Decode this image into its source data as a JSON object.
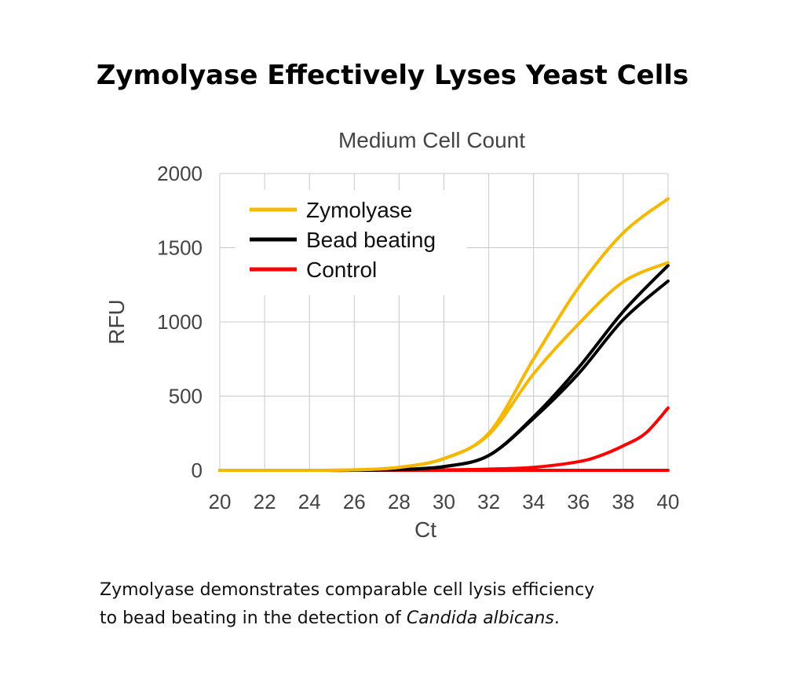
{
  "title": "Zymolyase Effectively Lyses Yeast Cells",
  "caption": {
    "line1": "Zymolyase demonstrates comparable cell lysis efficiency",
    "line2_prefix": "to bead beating in the detection of ",
    "line2_italic": "Candida albicans",
    "line2_suffix": "."
  },
  "chart_data": {
    "type": "line",
    "title": "Medium Cell Count",
    "xlabel": "Ct",
    "ylabel": "RFU",
    "xlim": [
      20,
      40
    ],
    "ylim": [
      0,
      2000
    ],
    "xticks": [
      "20",
      "22",
      "24",
      "26",
      "28",
      "30",
      "32",
      "34",
      "36",
      "38",
      "40"
    ],
    "yticks": [
      "0",
      "500",
      "1000",
      "1500",
      "2000"
    ],
    "grid": true,
    "legend_position": "top-left",
    "legend": [
      {
        "name": "Zymolyase",
        "color": "#f5b800"
      },
      {
        "name": "Bead beating",
        "color": "#000000"
      },
      {
        "name": "Control",
        "color": "#ff0000"
      }
    ],
    "series": [
      {
        "group": "Zymolyase",
        "color": "#f5b800",
        "x": [
          20,
          22,
          24,
          26,
          28,
          30,
          32,
          34,
          36,
          38,
          40
        ],
        "y": [
          0,
          0,
          0,
          3,
          20,
          80,
          250,
          750,
          1230,
          1600,
          1830
        ]
      },
      {
        "group": "Zymolyase",
        "color": "#f5b800",
        "x": [
          20,
          22,
          24,
          26,
          28,
          30,
          32,
          34,
          36,
          38,
          40
        ],
        "y": [
          0,
          0,
          0,
          3,
          20,
          78,
          240,
          650,
          985,
          1270,
          1400
        ]
      },
      {
        "group": "Bead beating",
        "color": "#000000",
        "x": [
          20,
          22,
          24,
          26,
          28,
          30,
          32,
          34,
          36,
          38,
          40
        ],
        "y": [
          0,
          0,
          0,
          0,
          5,
          25,
          100,
          360,
          690,
          1070,
          1380
        ]
      },
      {
        "group": "Bead beating",
        "color": "#000000",
        "x": [
          20,
          22,
          24,
          26,
          28,
          30,
          32,
          34,
          36,
          38,
          40
        ],
        "y": [
          0,
          0,
          0,
          0,
          5,
          25,
          100,
          350,
          650,
          1015,
          1275
        ]
      },
      {
        "group": "Control",
        "color": "#ff0000",
        "x": [
          20,
          22,
          24,
          26,
          28,
          30,
          32,
          34,
          36,
          37,
          38,
          39,
          40
        ],
        "y": [
          0,
          0,
          0,
          0,
          0,
          3,
          8,
          20,
          58,
          100,
          165,
          250,
          420
        ]
      },
      {
        "group": "Control",
        "color": "#ff0000",
        "x": [
          20,
          22,
          24,
          26,
          28,
          30,
          32,
          34,
          36,
          38,
          40
        ],
        "y": [
          0,
          0,
          0,
          0,
          0,
          0,
          0,
          0,
          0,
          0,
          0
        ]
      }
    ]
  }
}
